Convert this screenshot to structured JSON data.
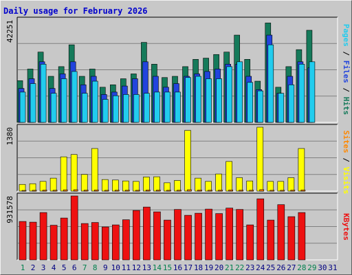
{
  "title": "Daily usage for February 2026",
  "colors": {
    "hits": "#157a5a",
    "files": "#2244dd",
    "pages": "#22ccee",
    "visits": "#ffff00",
    "sites": "#ff8800",
    "kbytes": "#ee1111",
    "bg": "#c8c8c8",
    "weekday_label": "#000080",
    "weekend_label": "#00804d",
    "grid": "#808080"
  },
  "chart_data": [
    {
      "type": "bar",
      "panel": "hits-files-pages",
      "ymax_label": "42251",
      "legend": [
        {
          "key": "pages",
          "label": "Pages"
        },
        {
          "key": "sep1",
          "label": " / "
        },
        {
          "key": "files",
          "label": "Files"
        },
        {
          "key": "sep2",
          "label": " / "
        },
        {
          "key": "hits",
          "label": "Hits"
        }
      ],
      "ylim": [
        0,
        42251
      ],
      "series": [
        {
          "key": "hits",
          "values": [
            17200,
            22000,
            29000,
            19000,
            23000,
            32000,
            19000,
            22000,
            14500,
            15500,
            18000,
            20000,
            33000,
            24000,
            18500,
            19000,
            23000,
            26000,
            26500,
            28000,
            29000,
            36000,
            26000,
            17000,
            41000,
            14500,
            23000,
            30000,
            38000
          ]
        },
        {
          "key": "files",
          "values": [
            14000,
            18000,
            25000,
            14000,
            20000,
            25000,
            15500,
            19000,
            11500,
            12500,
            15000,
            18000,
            25000,
            19000,
            14500,
            16000,
            19000,
            20000,
            21000,
            22000,
            24000,
            24000,
            19000,
            13500,
            36000,
            12000,
            19000,
            25000,
            22500
          ]
        },
        {
          "key": "pages",
          "values": [
            12500,
            16000,
            24000,
            12000,
            18000,
            21000,
            12000,
            17000,
            9500,
            11000,
            11500,
            11500,
            12000,
            12500,
            12500,
            12500,
            18500,
            19000,
            18000,
            18000,
            23000,
            25000,
            16500,
            13000,
            32000,
            12000,
            15500,
            24000,
            25000
          ]
        }
      ]
    },
    {
      "type": "bar",
      "panel": "visits-sites",
      "ymax_label": "1380",
      "legend": [
        {
          "key": "sites",
          "label": "Sites"
        },
        {
          "key": "sep3",
          "label": " / "
        },
        {
          "key": "visits",
          "label": "Visits"
        }
      ],
      "ylim": [
        0,
        1380
      ],
      "series": [
        {
          "key": "visits",
          "values": [
            145,
            160,
            210,
            280,
            740,
            790,
            360,
            920,
            250,
            240,
            220,
            210,
            305,
            310,
            180,
            230,
            1310,
            280,
            210,
            370,
            640,
            290,
            220,
            1380,
            210,
            210,
            290,
            920,
            0
          ]
        },
        {
          "key": "sites",
          "values": [
            15,
            18,
            22,
            20,
            28,
            30,
            22,
            26,
            18,
            20,
            20,
            18,
            24,
            22,
            18,
            20,
            30,
            24,
            20,
            22,
            26,
            22,
            20,
            32,
            18,
            18,
            22,
            26,
            0
          ]
        }
      ]
    },
    {
      "type": "bar",
      "panel": "kbytes",
      "ymax_label": "931578",
      "legend": [
        {
          "key": "kbytes",
          "label": "KBytes"
        }
      ],
      "ylim": [
        0,
        931578
      ],
      "series": [
        {
          "key": "kbytes",
          "values": [
            560000,
            550000,
            690000,
            505000,
            610000,
            931578,
            530000,
            545000,
            480000,
            510000,
            585000,
            720000,
            770000,
            700000,
            580000,
            735000,
            650000,
            680000,
            740000,
            675000,
            755000,
            735000,
            510000,
            890000,
            580000,
            805000,
            630000,
            690000,
            0
          ]
        }
      ]
    }
  ],
  "x_axis": {
    "days": [
      "1",
      "2",
      "3",
      "4",
      "5",
      "6",
      "7",
      "8",
      "9",
      "10",
      "11",
      "12",
      "13",
      "14",
      "15",
      "16",
      "17",
      "18",
      "19",
      "20",
      "21",
      "22",
      "23",
      "24",
      "25",
      "26",
      "27",
      "28",
      "29",
      "30",
      "31"
    ],
    "weekend_days": [
      "1",
      "7",
      "8",
      "14",
      "15",
      "21",
      "22",
      "28",
      "29"
    ]
  }
}
